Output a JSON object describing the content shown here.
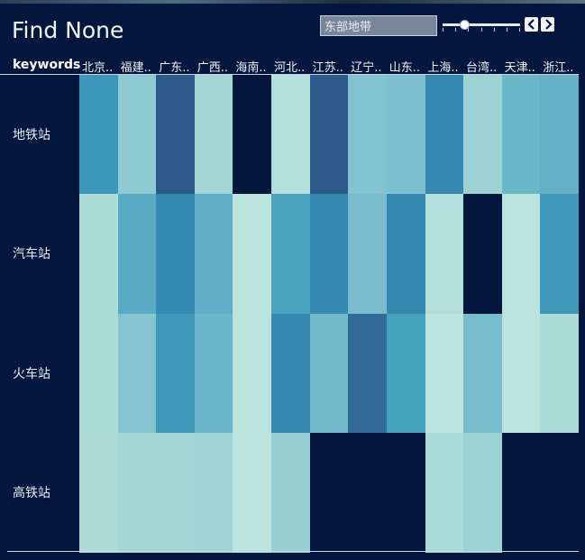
{
  "title": "Find None",
  "search": {
    "value": "东部地带"
  },
  "slider": {
    "value": 0.28
  },
  "nav": {
    "prev_icon": "chevron-left-icon",
    "next_icon": "chevron-right-icon"
  },
  "table": {
    "corner_label": "keywords",
    "columns": [
      "北京..",
      "福建..",
      "广东..",
      "广西..",
      "海南..",
      "河北..",
      "江苏..",
      "辽宁..",
      "山东..",
      "上海..",
      "台湾..",
      "天津..",
      "浙江.."
    ],
    "rows": [
      {
        "label": "地铁站",
        "colors": [
          "#3d97b8",
          "#8ecad2",
          "#2d5a89",
          "#a4d6d5",
          "#03173e",
          "#b3dfdc",
          "#2d5a89",
          "#82c3cf",
          "#7dc1ce",
          "#3589b1",
          "#9dd2d4",
          "#6ab7c9",
          "#64b0c6"
        ]
      },
      {
        "label": "汽车站",
        "colors": [
          "#acdcd8",
          "#58aac5",
          "#3489b1",
          "#5eadc6",
          "#bde4dc",
          "#4aa4c0",
          "#3589b1",
          "#7abbcd",
          "#3589b1",
          "#b3dfdc",
          "#03173e",
          "#bde4dc",
          "#3f98b8"
        ]
      },
      {
        "label": "火车站",
        "colors": [
          "#acdcd8",
          "#86c5d0",
          "#3f98b8",
          "#6ab7c9",
          "#bde4dc",
          "#3589b1",
          "#72bbcb",
          "#336b98",
          "#45a0bc",
          "#bde4dc",
          "#78bdcb",
          "#bde4dc",
          "#acdcd8"
        ]
      },
      {
        "label": "高铁站",
        "colors": [
          "#addcd8",
          "#a4d7d5",
          "#a4d7d5",
          "#a0d4d5",
          "#bde4dc",
          "#96cfd3",
          "#03173e",
          "#03173e",
          "#03173e",
          "#a8dad7",
          "#9bd2d4",
          "#03173e",
          "#03173e"
        ]
      }
    ]
  }
}
